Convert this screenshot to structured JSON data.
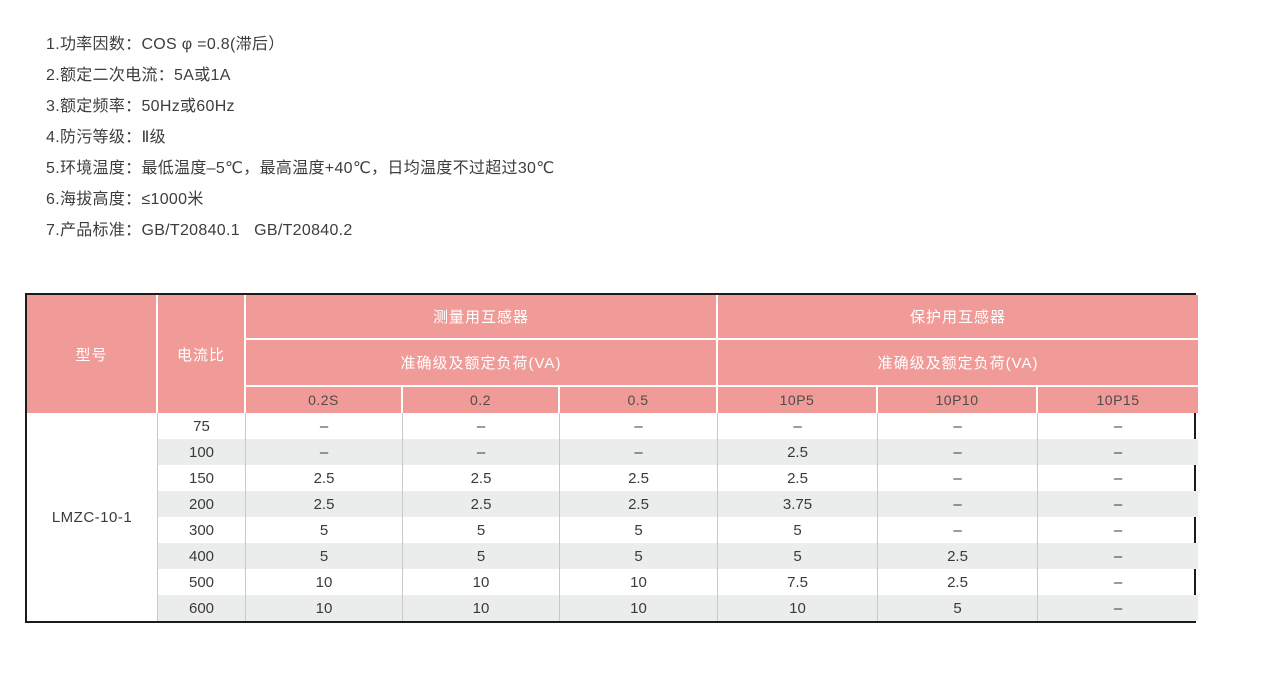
{
  "page": {
    "background": "#ffffff"
  },
  "specs": {
    "items": [
      "1.功率因数：COS φ =0.8(滞后）",
      "2.额定二次电流：5A或1A",
      "3.额定频率：50Hz或60Hz",
      "4.防污等级：Ⅱ级",
      "5.环境温度：最低温度–5℃，最高温度+40℃，日均温度不过超过30℃",
      "6.海拔高度：≤1000米",
      "7.产品标准：GB/T20840.1   GB/T20840.2"
    ]
  },
  "table": {
    "colors": {
      "header_bg": "#f19b98",
      "header_text": "#ffffff",
      "subheader_text": "#4c4c4c",
      "row_bg": "#ffffff",
      "row_alt_bg": "#ebedec",
      "body_text": "#3a3a3a",
      "outer_border": "#1b1b1b",
      "column_divider": "#c9c9c9"
    },
    "header": {
      "model_label": "型号",
      "ratio_label": "电流比",
      "groups": [
        {
          "title": "测量用互感器",
          "subtitle": "准确级及额定负荷(VA)",
          "classes": [
            "0.2S",
            "0.2",
            "0.5"
          ]
        },
        {
          "title": "保护用互感器",
          "subtitle": "准确级及额定负荷(VA)",
          "classes": [
            "10P5",
            "10P10",
            "10P15"
          ]
        }
      ]
    },
    "model": "LMZC-10-1",
    "rows": [
      {
        "ratio": "75",
        "values": [
          "–",
          "–",
          "–",
          "–",
          "–",
          "–"
        ]
      },
      {
        "ratio": "100",
        "values": [
          "–",
          "–",
          "–",
          "2.5",
          "–",
          "–"
        ]
      },
      {
        "ratio": "150",
        "values": [
          "2.5",
          "2.5",
          "2.5",
          "2.5",
          "–",
          "–"
        ]
      },
      {
        "ratio": "200",
        "values": [
          "2.5",
          "2.5",
          "2.5",
          "3.75",
          "–",
          "–"
        ]
      },
      {
        "ratio": "300",
        "values": [
          "5",
          "5",
          "5",
          "5",
          "–",
          "–"
        ]
      },
      {
        "ratio": "400",
        "values": [
          "5",
          "5",
          "5",
          "5",
          "2.5",
          "–"
        ]
      },
      {
        "ratio": "500",
        "values": [
          "10",
          "10",
          "10",
          "7.5",
          "2.5",
          "–"
        ]
      },
      {
        "ratio": "600",
        "values": [
          "10",
          "10",
          "10",
          "10",
          "5",
          "–"
        ]
      }
    ]
  }
}
